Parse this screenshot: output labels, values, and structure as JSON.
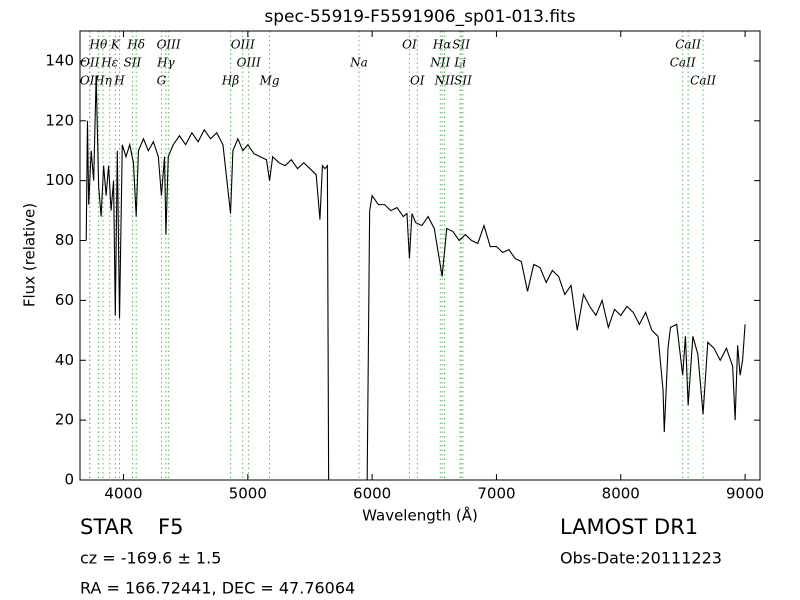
{
  "chart_data": {
    "type": "line",
    "title": "spec-55919-F5591906_sp01-013.fits",
    "xlabel": "Wavelength (Å)",
    "ylabel": "Flux (relative)",
    "xlim": [
      3650,
      9120
    ],
    "ylim": [
      0,
      150
    ],
    "xticks": [
      4000,
      5000,
      6000,
      7000,
      8000,
      9000
    ],
    "yticks": [
      0,
      20,
      40,
      60,
      80,
      100,
      120,
      140
    ],
    "x": [
      3700,
      3710,
      3720,
      3740,
      3760,
      3780,
      3800,
      3820,
      3840,
      3860,
      3880,
      3900,
      3920,
      3934,
      3950,
      3968,
      3990,
      4020,
      4050,
      4080,
      4102,
      4120,
      4160,
      4200,
      4240,
      4280,
      4305,
      4330,
      4341,
      4360,
      4400,
      4450,
      4500,
      4550,
      4600,
      4650,
      4700,
      4750,
      4800,
      4861,
      4880,
      4920,
      4960,
      5000,
      5050,
      5100,
      5150,
      5175,
      5200,
      5250,
      5300,
      5350,
      5400,
      5450,
      5500,
      5550,
      5580,
      5600,
      5620,
      5640,
      5650,
      5960,
      5980,
      6000,
      6050,
      6100,
      6150,
      6200,
      6250,
      6280,
      6300,
      6320,
      6350,
      6400,
      6450,
      6500,
      6563,
      6600,
      6650,
      6700,
      6750,
      6800,
      6850,
      6900,
      6950,
      7000,
      7050,
      7100,
      7150,
      7200,
      7250,
      7300,
      7350,
      7400,
      7450,
      7500,
      7550,
      7600,
      7650,
      7700,
      7750,
      7800,
      7850,
      7900,
      7950,
      8000,
      8050,
      8100,
      8150,
      8200,
      8250,
      8300,
      8340,
      8350,
      8380,
      8400,
      8450,
      8498,
      8520,
      8542,
      8580,
      8620,
      8662,
      8700,
      8750,
      8800,
      8850,
      8900,
      8920,
      8940,
      8960,
      8980,
      9000
    ],
    "series": [
      {
        "color": "#000000",
        "values": [
          80,
          120,
          92,
          110,
          100,
          135,
          98,
          88,
          105,
          95,
          105,
          90,
          100,
          55,
          110,
          54,
          112,
          108,
          112,
          106,
          88,
          110,
          114,
          110,
          113,
          108,
          95,
          108,
          82,
          108,
          112,
          115,
          112,
          116,
          113,
          117,
          114,
          116,
          112,
          89,
          110,
          114,
          110,
          112,
          109,
          108,
          107,
          100,
          108,
          106,
          105,
          107,
          104,
          106,
          104,
          102,
          87,
          105,
          104,
          105,
          0,
          0,
          90,
          95,
          92,
          92,
          90,
          91,
          88,
          89,
          74,
          89,
          86,
          85,
          88,
          84,
          68,
          84,
          83,
          80,
          82,
          80,
          79,
          85,
          78,
          78,
          76,
          77,
          74,
          73,
          63,
          72,
          71,
          66,
          70,
          68,
          62,
          65,
          50,
          62,
          58,
          55,
          60,
          51,
          57,
          55,
          58,
          56,
          52,
          56,
          50,
          48,
          30,
          16,
          44,
          51,
          52,
          35,
          48,
          25,
          48,
          42,
          22,
          46,
          44,
          40,
          44,
          38,
          20,
          45,
          35,
          40,
          52
        ]
      }
    ],
    "spectral_lines": [
      {
        "label": "OII",
        "x": 3727
      },
      {
        "label": "OII",
        "x": 3729
      },
      {
        "label": "Hθ",
        "x": 3798
      },
      {
        "label": "Hη",
        "x": 3835
      },
      {
        "label": "Hε",
        "x": 3889
      },
      {
        "label": "K",
        "x": 3934
      },
      {
        "label": "H",
        "x": 3968
      },
      {
        "label": "SII",
        "x": 4072
      },
      {
        "label": "Hδ",
        "x": 4102
      },
      {
        "label": "G",
        "x": 4305
      },
      {
        "label": "Hγ",
        "x": 4341
      },
      {
        "label": "OIII",
        "x": 4363
      },
      {
        "label": "Hβ",
        "x": 4861
      },
      {
        "label": "OIII",
        "x": 4959
      },
      {
        "label": "OIII",
        "x": 5007
      },
      {
        "label": "Mg",
        "x": 5175
      },
      {
        "label": "Na",
        "x": 5894
      },
      {
        "label": "OI",
        "x": 6300
      },
      {
        "label": "OI",
        "x": 6363
      },
      {
        "label": "NII",
        "x": 6548
      },
      {
        "label": "Hα",
        "x": 6563
      },
      {
        "label": "NII",
        "x": 6583
      },
      {
        "label": "Li",
        "x": 6708
      },
      {
        "label": "SII",
        "x": 6716
      },
      {
        "label": "SII",
        "x": 6731
      },
      {
        "label": "CaII",
        "x": 8498
      },
      {
        "label": "CaII",
        "x": 8542
      },
      {
        "label": "CaII",
        "x": 8662
      }
    ],
    "line_color": "#5fba5f"
  },
  "info": {
    "object": "STAR",
    "subclass": "F5",
    "survey": "LAMOST DR1",
    "cz": "cz = -169.6 ± 1.5",
    "obs_date": "Obs-Date:20111223",
    "coords": "RA = 166.72441, DEC = 47.76064"
  }
}
